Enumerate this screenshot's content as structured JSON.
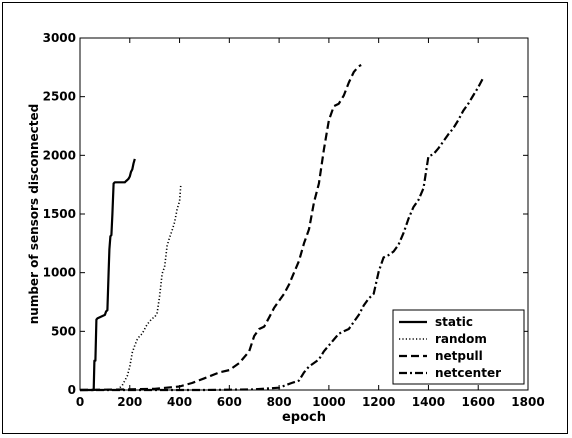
{
  "chart_data": {
    "type": "line",
    "xlabel": "epoch",
    "ylabel": "number of sensors disconnected",
    "xlim": [
      0,
      1800
    ],
    "ylim": [
      0,
      3000
    ],
    "xticks": [
      0,
      200,
      400,
      600,
      800,
      1000,
      1200,
      1400,
      1600,
      1800
    ],
    "yticks": [
      0,
      500,
      1000,
      1500,
      2000,
      2500,
      3000
    ],
    "grid": false,
    "legend_position": "bottom-right",
    "series": [
      {
        "name": "static",
        "style": "solid",
        "x": [
          0,
          55,
          58,
          62,
          66,
          70,
          100,
          105,
          110,
          115,
          118,
          122,
          126,
          130,
          135,
          140,
          180,
          185,
          190,
          195,
          200,
          205,
          210,
          215,
          220
        ],
        "y": [
          0,
          0,
          250,
          250,
          600,
          610,
          640,
          670,
          680,
          1000,
          1200,
          1310,
          1320,
          1500,
          1760,
          1770,
          1770,
          1780,
          1790,
          1800,
          1820,
          1860,
          1880,
          1930,
          1970
        ]
      },
      {
        "name": "random",
        "style": "dotted",
        "x": [
          0,
          150,
          170,
          180,
          190,
          200,
          210,
          220,
          230,
          240,
          250,
          270,
          290,
          300,
          310,
          320,
          330,
          340,
          350,
          360,
          370,
          380,
          390,
          400,
          405
        ],
        "y": [
          0,
          0,
          40,
          80,
          120,
          200,
          320,
          380,
          430,
          460,
          480,
          560,
          610,
          620,
          660,
          800,
          990,
          1050,
          1230,
          1300,
          1360,
          1430,
          1540,
          1610,
          1750
        ]
      },
      {
        "name": "netpull",
        "style": "dashed",
        "x": [
          0,
          200,
          300,
          400,
          450,
          500,
          560,
          600,
          640,
          680,
          700,
          720,
          740,
          760,
          780,
          800,
          820,
          840,
          860,
          880,
          900,
          920,
          940,
          960,
          980,
          1000,
          1020,
          1040,
          1060,
          1080,
          1100,
          1120,
          1130
        ],
        "y": [
          0,
          5,
          10,
          30,
          60,
          100,
          150,
          170,
          230,
          330,
          460,
          520,
          540,
          620,
          700,
          760,
          820,
          900,
          1000,
          1100,
          1250,
          1370,
          1600,
          1760,
          2050,
          2300,
          2420,
          2440,
          2510,
          2620,
          2710,
          2760,
          2770
        ]
      },
      {
        "name": "netcenter",
        "style": "dashdot",
        "x": [
          0,
          500,
          700,
          800,
          850,
          880,
          900,
          920,
          940,
          960,
          980,
          1000,
          1020,
          1040,
          1060,
          1080,
          1100,
          1120,
          1140,
          1160,
          1180,
          1200,
          1220,
          1240,
          1260,
          1280,
          1300,
          1320,
          1340,
          1360,
          1380,
          1400,
          1420,
          1440,
          1460,
          1480,
          1500,
          1520,
          1540,
          1560,
          1580,
          1600,
          1620
        ],
        "y": [
          0,
          0,
          5,
          20,
          60,
          80,
          150,
          200,
          230,
          260,
          330,
          380,
          430,
          480,
          500,
          520,
          580,
          640,
          720,
          780,
          820,
          1010,
          1130,
          1150,
          1180,
          1240,
          1340,
          1460,
          1560,
          1620,
          1720,
          1990,
          2010,
          2060,
          2120,
          2180,
          2230,
          2300,
          2380,
          2440,
          2510,
          2580,
          2660
        ]
      }
    ]
  }
}
